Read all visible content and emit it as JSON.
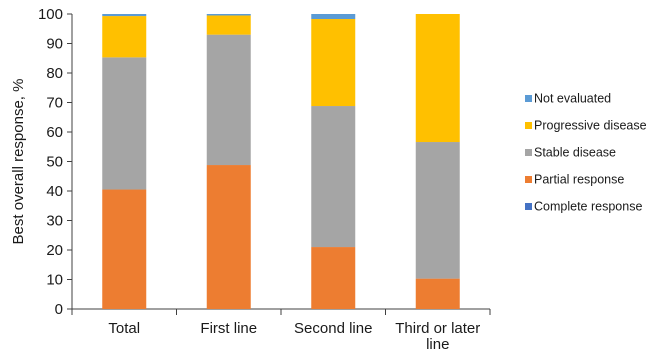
{
  "chart_data": {
    "type": "bar",
    "stacked": true,
    "title": "",
    "xlabel": "",
    "ylabel": "Best overall response, %",
    "ylim": [
      0,
      100
    ],
    "yticks": [
      "0",
      "10",
      "20",
      "30",
      "40",
      "50",
      "60",
      "70",
      "80",
      "90",
      "100"
    ],
    "grid": false,
    "legend_position": "right",
    "categories": [
      [
        "Total"
      ],
      [
        "First line"
      ],
      [
        "Second line"
      ],
      [
        "Third or later",
        "line"
      ]
    ],
    "series": [
      {
        "name": "Complete response",
        "color": "#4472C4",
        "values": [
          0,
          0,
          0,
          0
        ]
      },
      {
        "name": "Partial response",
        "color": "#ED7D31",
        "values": [
          40.5,
          48.8,
          21,
          10.3
        ]
      },
      {
        "name": "Stable disease",
        "color": "#A5A5A5",
        "values": [
          44.8,
          44.2,
          47.8,
          46.3
        ]
      },
      {
        "name": "Progressive disease",
        "color": "#FFC000",
        "values": [
          14,
          6.5,
          29.5,
          43.4
        ]
      },
      {
        "name": "Not evaluated",
        "color": "#5B9BD5",
        "values": [
          0.7,
          0.5,
          1.7,
          0
        ]
      }
    ],
    "legend_order": [
      "Not evaluated",
      "Progressive disease",
      "Stable disease",
      "Partial response",
      "Complete response"
    ]
  }
}
